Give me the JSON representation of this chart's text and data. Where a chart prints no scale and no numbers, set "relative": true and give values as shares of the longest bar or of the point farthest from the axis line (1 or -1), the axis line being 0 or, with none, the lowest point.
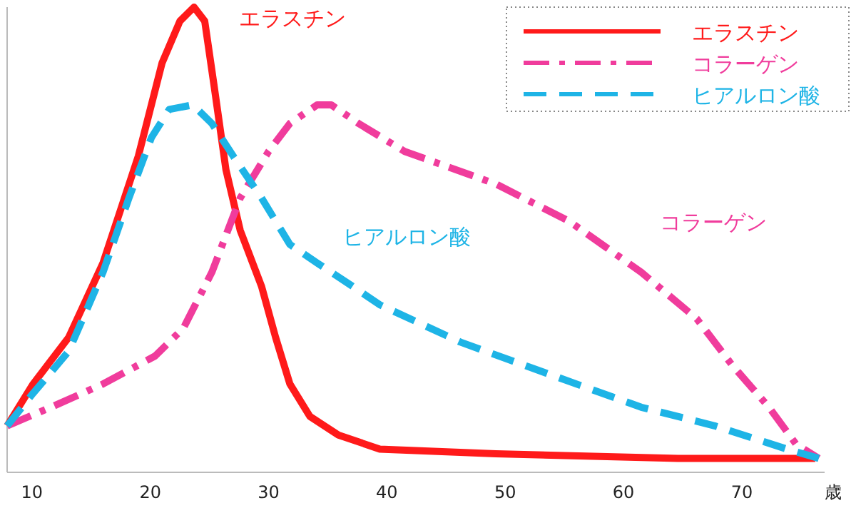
{
  "chart_data": {
    "type": "line",
    "relative": true,
    "xlabel": "歳",
    "xlim": [
      7.9,
      77
    ],
    "xticks": [
      10,
      20,
      30,
      40,
      50,
      60,
      70
    ],
    "legend": "top right",
    "grid": false,
    "marker": "none",
    "series": [
      {
        "name": "エラスチン",
        "color": "#ff1a1a",
        "line_style": "solid",
        "x": [
          7.9,
          10.1,
          13.1,
          16.0,
          19.0,
          21.0,
          22.5,
          23.7,
          24.6,
          25.4,
          26.4,
          27.6,
          29.4,
          30.6,
          31.8,
          33.5,
          35.9,
          39.4,
          49.2,
          64.6,
          76.2
        ],
        "values": [
          0.1,
          0.19,
          0.29,
          0.45,
          0.68,
          0.88,
          0.97,
          1.0,
          0.97,
          0.83,
          0.65,
          0.52,
          0.4,
          0.29,
          0.19,
          0.12,
          0.08,
          0.05,
          0.04,
          0.03,
          0.03
        ]
      },
      {
        "name": "コラーゲン",
        "color": "#f03c9c",
        "line_style": "dashdot",
        "x": [
          7.9,
          11.6,
          16.0,
          20.4,
          22.8,
          25.2,
          27.6,
          30.0,
          31.8,
          34.1,
          35.3,
          37.6,
          41.5,
          49.2,
          55.4,
          61.5,
          66.2,
          69.2,
          72.3,
          74.6,
          76.5
        ],
        "values": [
          0.1,
          0.14,
          0.19,
          0.25,
          0.31,
          0.43,
          0.59,
          0.69,
          0.75,
          0.79,
          0.79,
          0.75,
          0.69,
          0.62,
          0.54,
          0.43,
          0.33,
          0.23,
          0.14,
          0.06,
          0.03
        ]
      },
      {
        "name": "ヒアルロン酸",
        "color": "#1eb4e6",
        "line_style": "dashed",
        "x": [
          7.9,
          10.1,
          13.1,
          16.0,
          18.2,
          20.1,
          21.6,
          23.6,
          25.2,
          27.0,
          29.4,
          31.8,
          34.1,
          37.1,
          39.4,
          46.2,
          53.8,
          61.5,
          67.7,
          73.8,
          76.5
        ],
        "values": [
          0.1,
          0.17,
          0.26,
          0.43,
          0.59,
          0.72,
          0.78,
          0.79,
          0.75,
          0.68,
          0.59,
          0.49,
          0.45,
          0.4,
          0.36,
          0.28,
          0.21,
          0.14,
          0.1,
          0.05,
          0.03
        ]
      }
    ],
    "annotations": [
      "エラスチン",
      "ヒアルロン酸",
      "コラーゲン"
    ]
  }
}
